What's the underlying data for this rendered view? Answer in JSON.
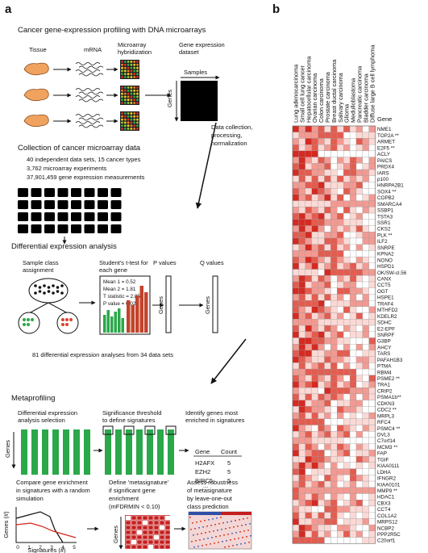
{
  "panel_labels": [
    "a",
    "b"
  ],
  "panel_a": {
    "profiling": {
      "title": "Cancer gene-expression profiling with DNA microarrays",
      "tissue": "Tissue",
      "mrna": "mRNA",
      "hybridization": [
        "Microarray",
        "hybridization"
      ],
      "dataset": [
        "Gene expression",
        "dataset"
      ],
      "samples": "Samples",
      "genes": "Genes"
    },
    "processing": [
      "Data collection,",
      "processing,",
      "normalization"
    ],
    "collection": {
      "title": "Collection of cancer microarray data",
      "lines": [
        "40 independent data sets, 15 cancer types",
        "3,762 microarray experiments",
        "37,901,459 gene expression measurements"
      ]
    },
    "differential": {
      "title": "Differential expression analysis",
      "class_assignment": [
        "Sample class",
        "assignment"
      ],
      "t_test": [
        "Student's t-test for",
        "each gene"
      ],
      "stats": [
        "Mean 1 = 0.52",
        "Mean 2 = 1.81",
        "T statistic = 2.85",
        "P value = 0.02"
      ],
      "p_values": "P values",
      "q_values": "Q values",
      "p_genes": "Genes",
      "q_genes": "Genes"
    },
    "analyses_note": "81 differential expression analyses from 34 data sets",
    "metaprofiling": {
      "title": "Metaprofiling",
      "selection": [
        "Differential expression",
        "analysis selection"
      ],
      "threshold": [
        "Significance threshold",
        "to define signatures"
      ],
      "identify": [
        "Identify genes most",
        "enriched in signatures"
      ],
      "genes": "Genes",
      "table": {
        "header": [
          "Gene",
          "Count"
        ],
        "rows": [
          [
            "H2AFX",
            5
          ],
          [
            "EZH2",
            5
          ],
          [
            "BIRC5",
            5
          ]
        ],
        "ellipsis": "..."
      },
      "compare": [
        "Compare gene enrichment",
        "in signatures with a random",
        "simulation"
      ],
      "define": [
        "Define 'metasignature'",
        "if significant gene",
        "enrichment",
        "(mFDRMIN < 0.10)"
      ],
      "assess": [
        "Assess robustness",
        "of metasignature",
        "by leave-one-out",
        "class prediction"
      ],
      "plot": {
        "y_label": "Genes (#)",
        "x_label": "Signatures (#)",
        "xticks": [
          0,
          1,
          2,
          3,
          4,
          5
        ]
      },
      "heatmap_genes": "Genes"
    }
  },
  "panel_b": {
    "cancer_types": [
      "Lung adenocarcinoma",
      "Small cell lung cancer",
      "Hepatocellular carcinoma",
      "Ovarian carcinoma",
      "Colon carcinoma",
      "Prostate carcinoma",
      "Breast ductal carcinoma",
      "Salivary carcinoma",
      "Glioma",
      "Medulloblastoma",
      "Pancreatic carcinoma",
      "Bladder carcinoma",
      "Diffuse large B cell lymphoma"
    ],
    "gene_header": "Gene",
    "genes": [
      "NME1",
      "TOP2A **",
      "ARMET",
      "E2F5 **",
      "ACLY",
      "PAICS",
      "PRDX4",
      "IARS",
      "p100",
      "HNRPA2B1",
      "SOX4 **",
      "COPB2",
      "SMARCA4",
      "SSBP1",
      "TSTA3",
      "SSR1",
      "CKS2",
      "PLK **",
      "ILF2",
      "SNRPE",
      "KPNA2",
      "NONO",
      "HSPD1",
      "OK/SW-cl.56",
      "CANX",
      "CCT5",
      "OGT",
      "HSPE1",
      "TRAF4",
      "MTHFD2",
      "KDELR2",
      "SDHC",
      "E2-EPF",
      "SNRPF",
      "G3BP",
      "AHCY",
      "TARS",
      "PAFAH1B3",
      "PTMA",
      "RBM4",
      "PSME2 **",
      "TRA1",
      "CRIP2",
      "PSMA1b**",
      "CDKN3",
      "CDC2 **",
      "MRPL3",
      "RFC4",
      "PSMC4 **",
      "DVL3",
      "C7orf14",
      "MCM3 **",
      "FAP",
      "TGIF",
      "KIAA0111",
      "LDHA",
      "IFNGR2",
      "KIAA0101",
      "MMP9 **",
      "HDAC1",
      "CBX3",
      "CCT4",
      "COL1A2",
      "MRPS12",
      "NCBP2",
      "PPP2R5C",
      "C20orf1"
    ]
  }
}
